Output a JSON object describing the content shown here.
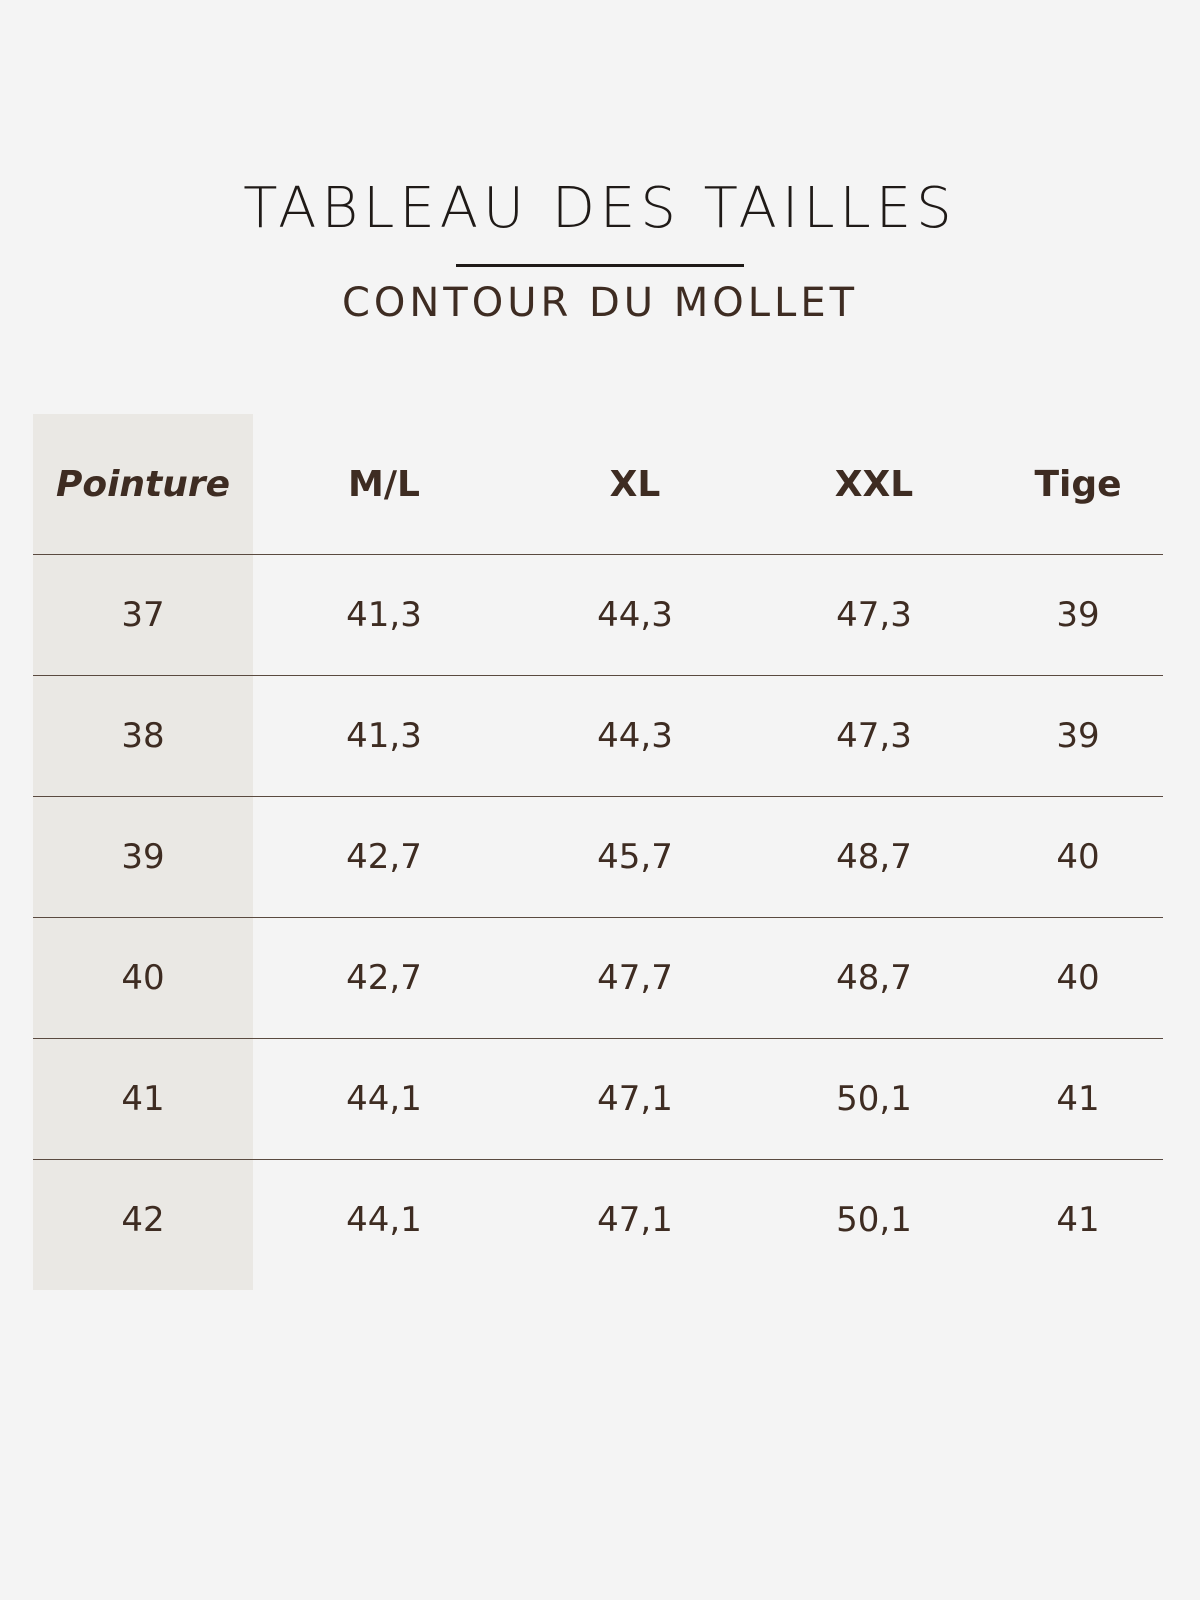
{
  "title": "TABLEAU DES TAILLES",
  "subtitle": "CONTOUR DU MOLLET",
  "colors": {
    "background": "#f4f4f4",
    "first_column": "#eae8e4",
    "text": "#3e2c22"
  },
  "table": {
    "headers": [
      "Pointure",
      "M/L",
      "XL",
      "XXL",
      "Tige"
    ],
    "rows": [
      [
        "37",
        "41,3",
        "44,3",
        "47,3",
        "39"
      ],
      [
        "38",
        "41,3",
        "44,3",
        "47,3",
        "39"
      ],
      [
        "39",
        "42,7",
        "45,7",
        "48,7",
        "40"
      ],
      [
        "40",
        "42,7",
        "47,7",
        "48,7",
        "40"
      ],
      [
        "41",
        "44,1",
        "47,1",
        "50,1",
        "41"
      ],
      [
        "42",
        "44,1",
        "47,1",
        "50,1",
        "41"
      ]
    ]
  }
}
